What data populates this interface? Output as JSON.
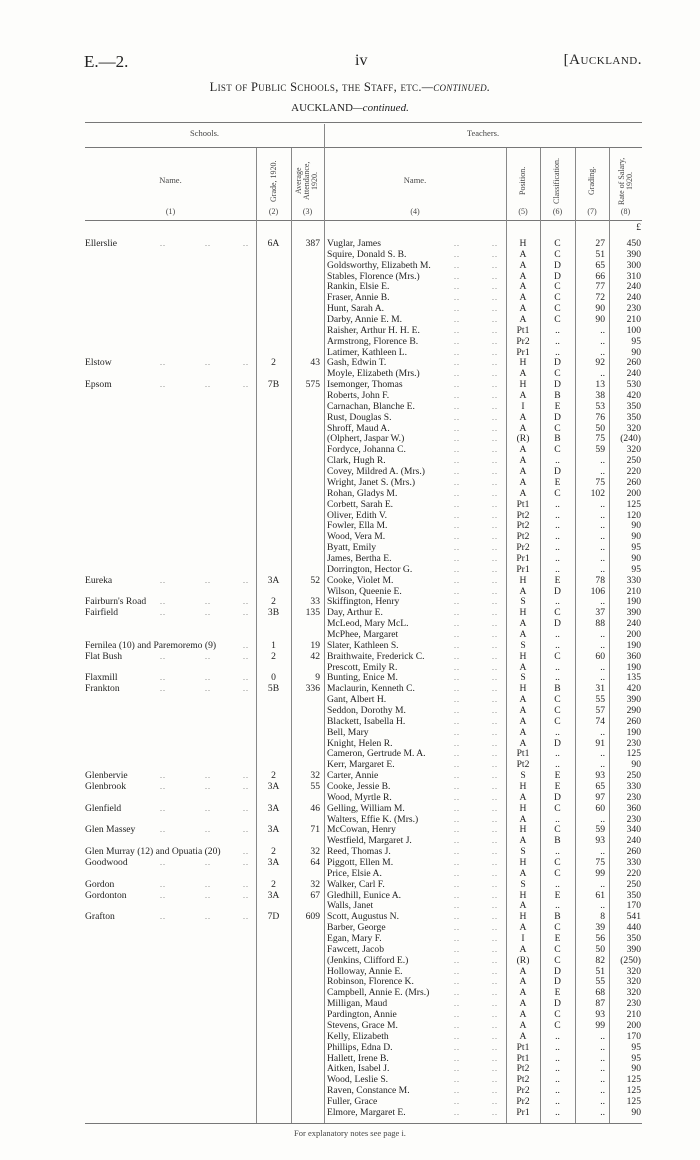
{
  "header": {
    "code": "E.—2.",
    "page_number": "iv",
    "region": "[Auckland."
  },
  "title": {
    "main": "List of Public Schools, the Staff, etc.",
    "main_suffix": "—continued.",
    "sub": "AUCKLAND",
    "sub_suffix": "—continued."
  },
  "groups": {
    "schools": "Schools.",
    "teachers": "Teachers."
  },
  "columns": {
    "school_name": "Name.",
    "grade": "Grade, 1920.",
    "attendance": "Average Attendance, 1920.",
    "teacher_name": "Name.",
    "position": "Position.",
    "classification": "Classification.",
    "grading": "Grading.",
    "salary": "Rate of Salary, 1920.",
    "numbers": [
      "(1)",
      "(2)",
      "(3)",
      "(4)",
      "(5)",
      "(6)",
      "(7)",
      "(8)"
    ]
  },
  "currency": "£",
  "schools": [
    {
      "name": "Ellerslie",
      "grade": "6A",
      "attendance": "387",
      "teachers": [
        [
          "Vuglar, James",
          "H",
          "C",
          "27",
          "450"
        ],
        [
          "Squire, Donald S. B.",
          "A",
          "C",
          "51",
          "390"
        ],
        [
          "Goldsworthy, Elizabeth M.",
          "A",
          "D",
          "65",
          "300"
        ],
        [
          "Stables, Florence (Mrs.)",
          "A",
          "D",
          "66",
          "310"
        ],
        [
          "Rankin, Elsie E.",
          "A",
          "C",
          "77",
          "240"
        ],
        [
          "Fraser, Annie B.",
          "A",
          "C",
          "72",
          "240"
        ],
        [
          "Hunt, Sarah A.",
          "A",
          "C",
          "90",
          "230"
        ],
        [
          "Darby, Annie E. M.",
          "A",
          "C",
          "90",
          "210"
        ],
        [
          "Raisher, Arthur H. H. E.",
          "Pt1",
          "..",
          "..",
          "100"
        ],
        [
          "Armstrong, Florence B.",
          "Pr2",
          "..",
          "..",
          "95"
        ],
        [
          "Latimer, Kathleen L.",
          "Pr1",
          "..",
          "..",
          "90"
        ]
      ]
    },
    {
      "name": "Elstow",
      "grade": "2",
      "attendance": "43",
      "teachers": [
        [
          "Gash, Edwin T.",
          "H",
          "D",
          "92",
          "260"
        ],
        [
          "Moyle, Elizabeth (Mrs.)",
          "A",
          "C",
          "..",
          "240"
        ]
      ]
    },
    {
      "name": "Epsom",
      "grade": "7B",
      "attendance": "575",
      "teachers": [
        [
          "Isemonger, Thomas",
          "H",
          "D",
          "13",
          "530"
        ],
        [
          "Roberts, John F.",
          "A",
          "B",
          "38",
          "420"
        ],
        [
          "Carnachan, Blanche E.",
          "I",
          "E",
          "53",
          "350"
        ],
        [
          "Rust, Douglas S.",
          "A",
          "D",
          "76",
          "350"
        ],
        [
          "Shroff, Maud A.",
          "A",
          "C",
          "50",
          "320"
        ],
        [
          "(Olphert, Jaspar W.)",
          "(R)",
          "B",
          "75",
          "(240)"
        ],
        [
          "Fordyce, Johanna C.",
          "A",
          "C",
          "59",
          "320"
        ],
        [
          "Clark, Hugh R.",
          "A",
          "..",
          "..",
          "250"
        ],
        [
          "Covey, Mildred A. (Mrs.)",
          "A",
          "D",
          "..",
          "220"
        ],
        [
          "Wright, Janet S. (Mrs.)",
          "A",
          "E",
          "75",
          "260"
        ],
        [
          "Rohan, Gladys M.",
          "A",
          "C",
          "102",
          "200"
        ],
        [
          "Corbett, Sarah E.",
          "Pt1",
          "..",
          "..",
          "125"
        ],
        [
          "Oliver, Edith V.",
          "Pt2",
          "..",
          "..",
          "120"
        ],
        [
          "Fowler, Ella M.",
          "Pt2",
          "..",
          "..",
          "90"
        ],
        [
          "Wood, Vera M.",
          "Pt2",
          "..",
          "..",
          "90"
        ],
        [
          "Byatt, Emily",
          "Pr2",
          "..",
          "..",
          "95"
        ],
        [
          "James, Bertha E.",
          "Pr1",
          "..",
          "..",
          "90"
        ],
        [
          "Dorrington, Hector G.",
          "Pr1",
          "..",
          "..",
          "95"
        ]
      ]
    },
    {
      "name": "Eureka",
      "grade": "3A",
      "attendance": "52",
      "teachers": [
        [
          "Cooke, Violet M.",
          "H",
          "E",
          "78",
          "330"
        ],
        [
          "Wilson, Queenie E.",
          "A",
          "D",
          "106",
          "210"
        ]
      ]
    },
    {
      "name": "Fairburn's Road",
      "grade": "2",
      "attendance": "33",
      "teachers": [
        [
          "Skiffington, Henry",
          "S",
          "..",
          "..",
          "190"
        ]
      ]
    },
    {
      "name": "Fairfield",
      "grade": "3B",
      "attendance": "135",
      "teachers": [
        [
          "Day, Arthur E.",
          "H",
          "C",
          "37",
          "390"
        ],
        [
          "McLeod, Mary McL.",
          "A",
          "D",
          "88",
          "240"
        ],
        [
          "McPhee, Margaret",
          "A",
          "..",
          "..",
          "200"
        ]
      ]
    },
    {
      "name": "Fernilea (10) and Paremoremo (9)",
      "grade": "1",
      "attendance": "19",
      "teachers": [
        [
          "Slater, Kathleen S.",
          "S",
          "..",
          "..",
          "190"
        ]
      ]
    },
    {
      "name": "Flat Bush",
      "grade": "2",
      "attendance": "42",
      "teachers": [
        [
          "Braithwaite, Frederick C.",
          "H",
          "C",
          "60",
          "360"
        ],
        [
          "Prescott, Emily R.",
          "A",
          "..",
          "..",
          "190"
        ]
      ]
    },
    {
      "name": "Flaxmill",
      "grade": "0",
      "attendance": "9",
      "teachers": [
        [
          "Bunting, Enice M.",
          "S",
          "..",
          "..",
          "135"
        ]
      ]
    },
    {
      "name": "Frankton",
      "grade": "5B",
      "attendance": "336",
      "teachers": [
        [
          "Maclaurin, Kenneth C.",
          "H",
          "B",
          "31",
          "420"
        ],
        [
          "Gant, Albert H.",
          "A",
          "C",
          "55",
          "390"
        ],
        [
          "Seddon, Dorothy M.",
          "A",
          "C",
          "57",
          "290"
        ],
        [
          "Blackett, Isabella H.",
          "A",
          "C",
          "74",
          "260"
        ],
        [
          "Bell, Mary",
          "A",
          "..",
          "..",
          "190"
        ],
        [
          "Knight, Helen R.",
          "A",
          "D",
          "91",
          "230"
        ],
        [
          "Cameron, Gertrude M. A.",
          "Pt1",
          "..",
          "..",
          "125"
        ],
        [
          "Kerr, Margaret E.",
          "Pt2",
          "..",
          "..",
          "90"
        ]
      ]
    },
    {
      "name": "Glenbervie",
      "grade": "2",
      "attendance": "32",
      "teachers": [
        [
          "Carter, Annie",
          "S",
          "E",
          "93",
          "250"
        ]
      ]
    },
    {
      "name": "Glenbrook",
      "grade": "3A",
      "attendance": "55",
      "teachers": [
        [
          "Cooke, Jessie B.",
          "H",
          "E",
          "65",
          "330"
        ],
        [
          "Wood, Myrtle R.",
          "A",
          "D",
          "97",
          "230"
        ]
      ]
    },
    {
      "name": "Glenfield",
      "grade": "3A",
      "attendance": "46",
      "teachers": [
        [
          "Gelling, William M.",
          "H",
          "C",
          "60",
          "360"
        ],
        [
          "Walters, Effie K. (Mrs.)",
          "A",
          "..",
          "..",
          "230"
        ]
      ]
    },
    {
      "name": "Glen Massey",
      "grade": "3A",
      "attendance": "71",
      "teachers": [
        [
          "McCowan, Henry",
          "H",
          "C",
          "59",
          "340"
        ],
        [
          "Westfield, Margaret J.",
          "A",
          "B",
          "93",
          "240"
        ]
      ]
    },
    {
      "name": "Glen Murray (12) and Opuatia (20)",
      "grade": "2",
      "attendance": "32",
      "teachers": [
        [
          "Reed, Thomas J.",
          "S",
          "..",
          "..",
          "260"
        ]
      ]
    },
    {
      "name": "Goodwood",
      "grade": "3A",
      "attendance": "64",
      "teachers": [
        [
          "Piggott, Ellen M.",
          "H",
          "C",
          "75",
          "330"
        ],
        [
          "Price, Elsie A.",
          "A",
          "C",
          "99",
          "220"
        ]
      ]
    },
    {
      "name": "Gordon",
      "grade": "2",
      "attendance": "32",
      "teachers": [
        [
          "Walker, Carl F.",
          "S",
          "..",
          "..",
          "250"
        ]
      ]
    },
    {
      "name": "Gordonton",
      "grade": "3A",
      "attendance": "67",
      "teachers": [
        [
          "Gledhill, Eunice A.",
          "H",
          "E",
          "61",
          "350"
        ],
        [
          "Walls, Janet",
          "A",
          "..",
          "..",
          "170"
        ]
      ]
    },
    {
      "name": "Grafton",
      "grade": "7D",
      "attendance": "609",
      "teachers": [
        [
          "Scott, Augustus N.",
          "H",
          "B",
          "8",
          "541"
        ],
        [
          "Barber, George",
          "A",
          "C",
          "39",
          "440"
        ],
        [
          "Egan, Mary F.",
          "I",
          "E",
          "56",
          "350"
        ],
        [
          "Fawcett, Jacob",
          "A",
          "C",
          "50",
          "390"
        ],
        [
          "(Jenkins, Clifford E.)",
          "(R)",
          "C",
          "82",
          "(250)"
        ],
        [
          "Holloway, Annie E.",
          "A",
          "D",
          "51",
          "320"
        ],
        [
          "Robinson, Florence K.",
          "A",
          "D",
          "55",
          "320"
        ],
        [
          "Campbell, Annie E. (Mrs.)",
          "A",
          "E",
          "68",
          "320"
        ],
        [
          "Milligan, Maud",
          "A",
          "D",
          "87",
          "230"
        ],
        [
          "Pardington, Annie",
          "A",
          "C",
          "93",
          "210"
        ],
        [
          "Stevens, Grace M.",
          "A",
          "C",
          "99",
          "200"
        ],
        [
          "Kelly, Elizabeth",
          "A",
          "..",
          "..",
          "170"
        ],
        [
          "Phillips, Edna D.",
          "Pt1",
          "..",
          "..",
          "95"
        ],
        [
          "Hallett, Irene B.",
          "Pt1",
          "..",
          "..",
          "95"
        ],
        [
          "Aitken, Isabel J.",
          "Pt2",
          "..",
          "..",
          "90"
        ],
        [
          "Wood, Leslie S.",
          "Pt2",
          "..",
          "..",
          "125"
        ],
        [
          "Raven, Constance M.",
          "Pr2",
          "..",
          "..",
          "125"
        ],
        [
          "Fuller, Grace",
          "Pr2",
          "..",
          "..",
          "125"
        ],
        [
          "Elmore, Margaret E.",
          "Pr1",
          "..",
          "..",
          "90"
        ]
      ]
    }
  ],
  "footnote": "For explanatory notes see page i."
}
